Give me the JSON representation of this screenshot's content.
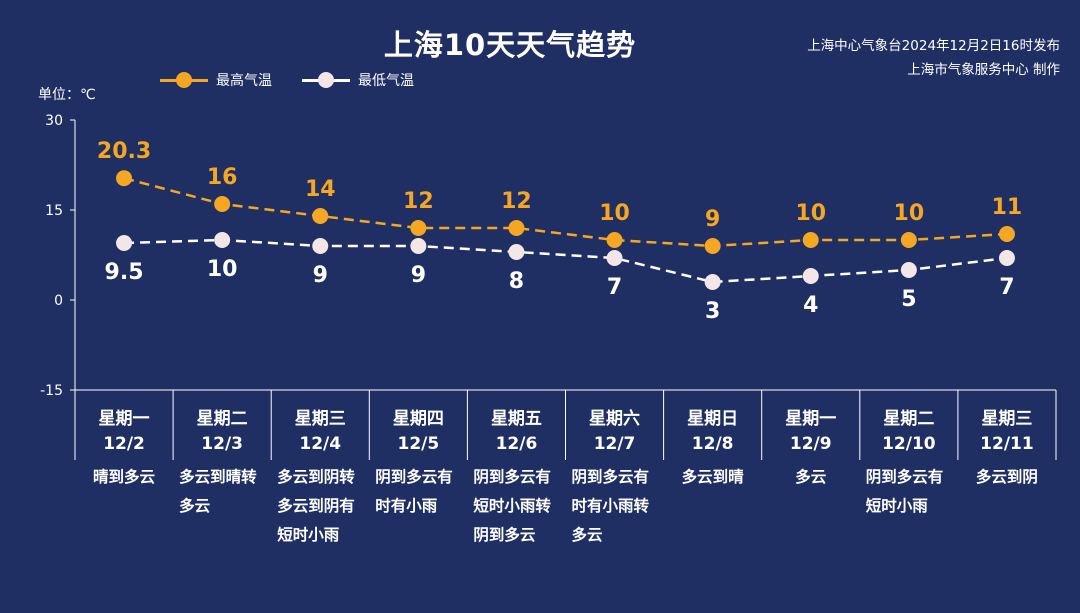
{
  "header": {
    "title": "上海10天天气趋势",
    "issuer_line1": "上海中心气象台2024年12月2日16时发布",
    "issuer_line2": "上海市气象服务中心 制作",
    "unit": "单位：℃"
  },
  "colors": {
    "background": "#1f2f63",
    "high": "#f5a623",
    "low": "#ffffff",
    "low_marker": "#f3e6e6"
  },
  "chart_data": {
    "type": "line",
    "categories": [
      "12/2",
      "12/3",
      "12/4",
      "12/5",
      "12/6",
      "12/7",
      "12/8",
      "12/9",
      "12/10",
      "12/11"
    ],
    "weekdays": [
      "星期一",
      "星期二",
      "星期三",
      "星期四",
      "星期五",
      "星期六",
      "星期日",
      "星期一",
      "星期二",
      "星期三"
    ],
    "weather": [
      [
        "晴到多云"
      ],
      [
        "多云到晴转",
        "多云"
      ],
      [
        "多云到阴转",
        "多云到阴有",
        "短时小雨"
      ],
      [
        "阴到多云有",
        "时有小雨"
      ],
      [
        "阴到多云有",
        "短时小雨转",
        "阴到多云"
      ],
      [
        "阴到多云有",
        "时有小雨转",
        "多云"
      ],
      [
        "多云到晴"
      ],
      [
        "多云"
      ],
      [
        "阴到多云有",
        "短时小雨"
      ],
      [
        "多云到阴"
      ]
    ],
    "series": [
      {
        "name": "最高气温",
        "values": [
          20.3,
          16,
          14,
          12,
          12,
          10,
          9,
          10,
          10,
          11
        ],
        "labels": [
          "20.3",
          "16",
          "14",
          "12",
          "12",
          "10",
          "9",
          "10",
          "10",
          "11"
        ]
      },
      {
        "name": "最低气温",
        "values": [
          9.5,
          10,
          9,
          9,
          8,
          7,
          3,
          4,
          5,
          7
        ],
        "labels": [
          "9.5",
          "10",
          "9",
          "9",
          "8",
          "7",
          "3",
          "4",
          "5",
          "7"
        ]
      }
    ],
    "y_ticks": [
      "30",
      "15",
      "0",
      "-15"
    ],
    "ylim": [
      -15,
      30
    ],
    "legend_position": "top-left",
    "grid": false
  }
}
